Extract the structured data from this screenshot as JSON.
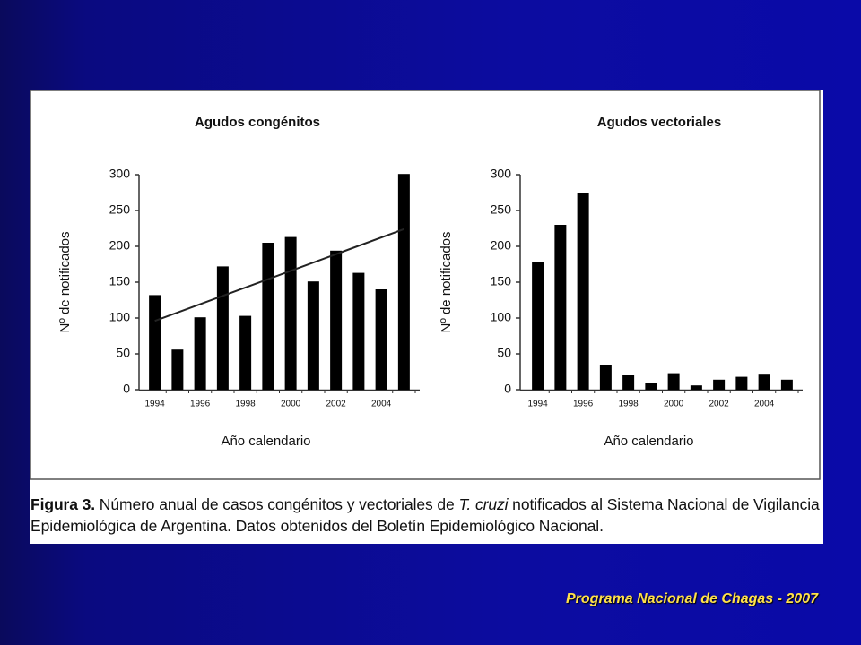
{
  "chart_data": [
    {
      "type": "bar",
      "title": "Agudos congénitos",
      "y_label": "Nº de notificados",
      "x_label": "Año calendario",
      "categories": [
        "1994",
        null,
        "1996",
        null,
        "1998",
        null,
        "2000",
        null,
        "2002",
        null,
        "2004",
        null
      ],
      "values": [
        132,
        56,
        101,
        172,
        103,
        205,
        213,
        151,
        194,
        163,
        140,
        301
      ],
      "trend": [
        96,
        224
      ],
      "color": "#000000",
      "ylim": [
        0,
        300
      ],
      "yticks": [
        0,
        50,
        100,
        150,
        200,
        250,
        300
      ]
    },
    {
      "type": "bar",
      "title": "Agudos vectoriales",
      "y_label": "Nº de notificados",
      "x_label": "Año calendario",
      "categories": [
        "1994",
        null,
        "1996",
        null,
        "1998",
        null,
        "2000",
        null,
        "2002",
        null,
        "2004",
        null
      ],
      "values": [
        178,
        230,
        275,
        35,
        20,
        9,
        23,
        6,
        14,
        18,
        21,
        14
      ],
      "color": "#000000",
      "ylim": [
        0,
        300
      ],
      "yticks": [
        0,
        50,
        100,
        150,
        200,
        250,
        300
      ]
    }
  ],
  "caption": {
    "label": "Figura 3.",
    "text1": " Número anual de casos congénitos y vectoriales de ",
    "species": "T. cruzi",
    "text2": "  notificados al Sistema Nacional de Vigilancia Epidemiológica de Argentina. Datos obtenidos del Boletín Epidemiológico Nacional."
  },
  "footer": "Programa Nacional de Chagas - 2007"
}
